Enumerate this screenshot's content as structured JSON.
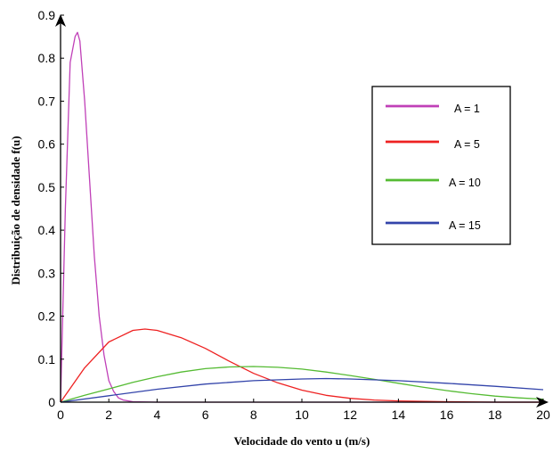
{
  "chart_data": {
    "type": "line",
    "xlabel": "Velocidade do vento u (m/s)",
    "ylabel": "Distribuição de densidade f(u)",
    "xlim": [
      0,
      20
    ],
    "ylim": [
      0,
      0.9
    ],
    "x_ticks": [
      "0",
      "2",
      "4",
      "6",
      "8",
      "10",
      "12",
      "14",
      "16",
      "18",
      "20"
    ],
    "y_ticks": [
      "0",
      "0.1",
      "0.2",
      "0.3",
      "0.4",
      "0.5",
      "0.6",
      "0.7",
      "0.8",
      "0.9"
    ],
    "grid": false,
    "legend_position": "top-right",
    "series": [
      {
        "name": "A = 1",
        "color": "#c040b8",
        "x": [
          0,
          0.2,
          0.4,
          0.6,
          0.7,
          0.8,
          1.0,
          1.2,
          1.4,
          1.6,
          1.8,
          2.0,
          2.2,
          2.4,
          2.6,
          3.0,
          4.0,
          20
        ],
        "y": [
          0,
          0.45,
          0.79,
          0.85,
          0.86,
          0.84,
          0.7,
          0.52,
          0.34,
          0.2,
          0.11,
          0.05,
          0.025,
          0.01,
          0.005,
          0.001,
          0,
          0
        ]
      },
      {
        "name": "A = 5",
        "color": "#ee2222",
        "x": [
          0,
          1,
          2,
          3,
          3.5,
          4,
          5,
          6,
          7,
          8,
          9,
          10,
          11,
          12,
          13,
          14,
          16,
          18,
          20
        ],
        "y": [
          0,
          0.08,
          0.14,
          0.167,
          0.17,
          0.167,
          0.15,
          0.125,
          0.095,
          0.067,
          0.045,
          0.028,
          0.016,
          0.009,
          0.005,
          0.003,
          0.001,
          0,
          0
        ]
      },
      {
        "name": "A = 10",
        "color": "#55bb33",
        "x": [
          0,
          1,
          2,
          3,
          4,
          5,
          6,
          7,
          8,
          9,
          10,
          11,
          12,
          13,
          14,
          15,
          16,
          17,
          18,
          19,
          20
        ],
        "y": [
          0,
          0.016,
          0.031,
          0.046,
          0.059,
          0.07,
          0.078,
          0.082,
          0.083,
          0.081,
          0.077,
          0.07,
          0.062,
          0.053,
          0.044,
          0.035,
          0.027,
          0.02,
          0.014,
          0.01,
          0.007
        ]
      },
      {
        "name": "A = 15",
        "color": "#3344aa",
        "x": [
          0,
          2,
          4,
          6,
          8,
          10,
          11,
          12,
          14,
          16,
          18,
          20
        ],
        "y": [
          0,
          0.015,
          0.03,
          0.042,
          0.05,
          0.054,
          0.055,
          0.054,
          0.05,
          0.044,
          0.037,
          0.029
        ]
      }
    ]
  }
}
